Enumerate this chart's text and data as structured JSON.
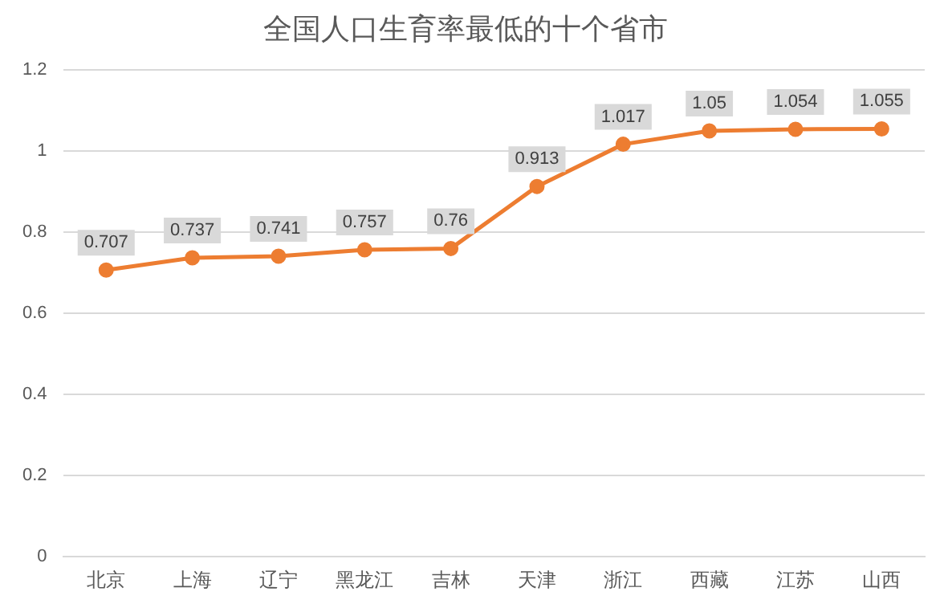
{
  "chart_data": {
    "type": "line",
    "title": "全国人口生育率最低的十个省市",
    "categories": [
      "北京",
      "上海",
      "辽宁",
      "黑龙江",
      "吉林",
      "天津",
      "浙江",
      "西藏",
      "江苏",
      "山西"
    ],
    "values": [
      0.707,
      0.737,
      0.741,
      0.757,
      0.76,
      0.913,
      1.017,
      1.05,
      1.054,
      1.055
    ],
    "color": "#ed7d31",
    "ylim": [
      0,
      1.2
    ],
    "yticks": [
      0,
      0.2,
      0.4,
      0.6,
      0.8,
      1,
      1.2
    ],
    "grid": "y",
    "marker": "circle",
    "line_style": "solid",
    "data_labels": true
  }
}
